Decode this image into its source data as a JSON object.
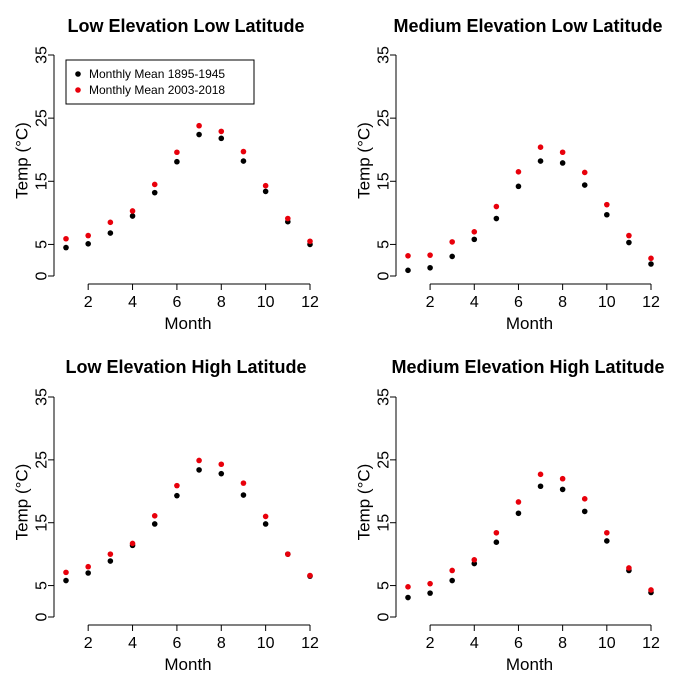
{
  "colors": {
    "series1": "#000000",
    "series2": "#e8000b",
    "axis": "#000000",
    "background": "#ffffff"
  },
  "chart_data": [
    {
      "type": "scatter",
      "title": "Low Elevation Low Latitude",
      "xlabel": "Month",
      "ylabel": "Temp  (°C)",
      "xlim": [
        1,
        12
      ],
      "ylim": [
        0,
        35
      ],
      "x_ticks": [
        2,
        4,
        6,
        8,
        10,
        12
      ],
      "y_ticks": [
        0,
        5,
        15,
        25,
        35
      ],
      "grid": false,
      "legend": {
        "position": "top-left",
        "entries": [
          "Monthly Mean 1895-1945",
          "Monthly Mean 2003-2018"
        ]
      },
      "x": [
        1,
        2,
        3,
        4,
        5,
        6,
        7,
        8,
        9,
        10,
        11,
        12
      ],
      "series": [
        {
          "name": "Monthly Mean 1895-1945",
          "values": [
            4.5,
            5.1,
            6.8,
            9.5,
            13.2,
            18.1,
            22.4,
            21.8,
            18.2,
            13.4,
            8.6,
            5.0
          ]
        },
        {
          "name": "Monthly Mean 2003-2018",
          "values": [
            5.9,
            6.4,
            8.5,
            10.3,
            14.5,
            19.6,
            23.8,
            22.9,
            19.7,
            14.3,
            9.1,
            5.5
          ]
        }
      ]
    },
    {
      "type": "scatter",
      "title": "Medium Elevation Low Latitude",
      "xlabel": "Month",
      "ylabel": "Temp  (°C)",
      "xlim": [
        1,
        12
      ],
      "ylim": [
        0,
        35
      ],
      "x_ticks": [
        2,
        4,
        6,
        8,
        10,
        12
      ],
      "y_ticks": [
        0,
        5,
        15,
        25,
        35
      ],
      "grid": false,
      "x": [
        1,
        2,
        3,
        4,
        5,
        6,
        7,
        8,
        9,
        10,
        11,
        12
      ],
      "series": [
        {
          "name": "Monthly Mean 1895-1945",
          "values": [
            0.9,
            1.3,
            3.1,
            5.8,
            9.1,
            14.2,
            18.2,
            17.9,
            14.4,
            9.7,
            5.3,
            1.9
          ]
        },
        {
          "name": "Monthly Mean 2003-2018",
          "values": [
            3.2,
            3.3,
            5.4,
            7.0,
            11.0,
            16.5,
            20.4,
            19.6,
            16.4,
            11.3,
            6.4,
            2.8
          ]
        }
      ]
    },
    {
      "type": "scatter",
      "title": "Low Elevation High Latitude",
      "xlabel": "Month",
      "ylabel": "Temp  (°C)",
      "xlim": [
        1,
        12
      ],
      "ylim": [
        0,
        35
      ],
      "x_ticks": [
        2,
        4,
        6,
        8,
        10,
        12
      ],
      "y_ticks": [
        0,
        5,
        15,
        25,
        35
      ],
      "grid": false,
      "x": [
        1,
        2,
        3,
        4,
        5,
        6,
        7,
        8,
        9,
        10,
        11,
        12
      ],
      "series": [
        {
          "name": "Monthly Mean 1895-1945",
          "values": [
            5.8,
            7.0,
            8.9,
            11.4,
            14.8,
            19.3,
            23.4,
            22.8,
            19.4,
            14.8,
            10.0,
            6.5
          ]
        },
        {
          "name": "Monthly Mean 2003-2018",
          "values": [
            7.1,
            8.0,
            10.0,
            11.7,
            16.1,
            20.9,
            24.9,
            24.3,
            21.3,
            16.0,
            10.0,
            6.6
          ]
        }
      ]
    },
    {
      "type": "scatter",
      "title": "Medium Elevation High Latitude",
      "xlabel": "Month",
      "ylabel": "Temp  (°C)",
      "xlim": [
        1,
        12
      ],
      "ylim": [
        0,
        35
      ],
      "x_ticks": [
        2,
        4,
        6,
        8,
        10,
        12
      ],
      "y_ticks": [
        0,
        5,
        15,
        25,
        35
      ],
      "grid": false,
      "x": [
        1,
        2,
        3,
        4,
        5,
        6,
        7,
        8,
        9,
        10,
        11,
        12
      ],
      "series": [
        {
          "name": "Monthly Mean 1895-1945",
          "values": [
            3.1,
            3.8,
            5.8,
            8.5,
            11.9,
            16.5,
            20.8,
            20.3,
            16.8,
            12.1,
            7.4,
            3.9
          ]
        },
        {
          "name": "Monthly Mean 2003-2018",
          "values": [
            4.8,
            5.3,
            7.4,
            9.1,
            13.4,
            18.3,
            22.7,
            22.0,
            18.8,
            13.4,
            7.8,
            4.3
          ]
        }
      ]
    }
  ]
}
